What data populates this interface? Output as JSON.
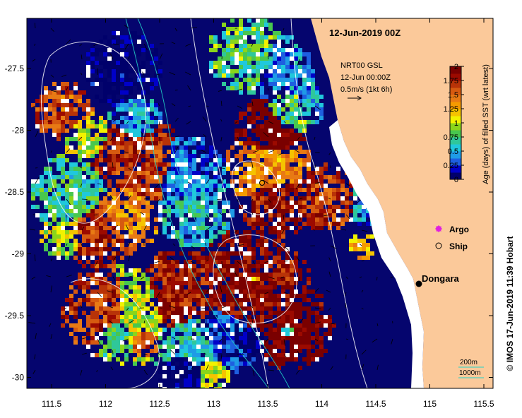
{
  "title": "12-Jun-2019 00Z",
  "current_info": {
    "product": "NRT00 GSL",
    "time": "12-Jun 00:00Z",
    "scale": "0.5m/s (1kt 6h)"
  },
  "x_axis": {
    "ticks": [
      "111.5",
      "112",
      "112.5",
      "113",
      "113.5",
      "114",
      "114.5",
      "115",
      "115.5"
    ]
  },
  "y_axis": {
    "ticks": [
      "-27.5",
      "-28",
      "-28.5",
      "-29",
      "-29.5",
      "-30"
    ]
  },
  "colorbar": {
    "title": "Age (days) of filled SST (wrt latest)",
    "ticks": [
      "2",
      "1.75",
      "1.5",
      "1.25",
      "1",
      "0.75",
      "0.5",
      "0.25",
      "0"
    ],
    "colors": [
      "#00006b",
      "#0000c8",
      "#1e5fe0",
      "#1f9be6",
      "#20c8dc",
      "#2fc79a",
      "#48c74e",
      "#8ad51b",
      "#f2f200",
      "#f5c300",
      "#f59a00",
      "#e87a14",
      "#d65a10",
      "#b83308",
      "#9c0a00",
      "#7a0000"
    ]
  },
  "legend": {
    "argo_label": "Argo",
    "ship_label": "Ship"
  },
  "town": {
    "name": "Dongara"
  },
  "bathymetry_legend": {
    "depth_200": "200m",
    "depth_1000": "1000m"
  },
  "credit": "© IMOS 17-Jun-2019 11:39 Hobart",
  "colors": {
    "land": "#fbc99a",
    "ocean_background": "#05056e",
    "bathy_200": "#22d3c8",
    "bathy_1000": "#ffffff",
    "argo": "#e020e0"
  }
}
